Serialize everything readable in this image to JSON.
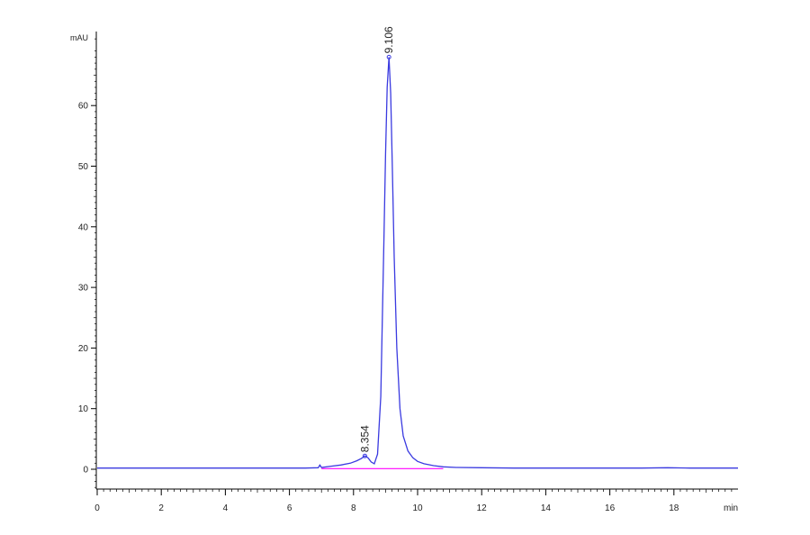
{
  "chart_data": {
    "type": "line",
    "title": "",
    "xlabel": "min",
    "ylabel": "mAU",
    "xlim": [
      0,
      20
    ],
    "ylim": [
      -4,
      72
    ],
    "x_ticks": [
      0,
      2,
      4,
      6,
      8,
      10,
      12,
      14,
      16,
      18
    ],
    "y_ticks": [
      0,
      10,
      20,
      30,
      40,
      50,
      60
    ],
    "grid": false,
    "legend": "none",
    "series": [
      {
        "color": "#3a3ae0",
        "x": [
          0,
          1,
          2,
          3,
          4,
          5,
          6,
          6.5,
          6.9,
          6.95,
          7.0,
          7.3,
          7.6,
          7.9,
          8.1,
          8.25,
          8.354,
          8.45,
          8.55,
          8.65,
          8.75,
          8.85,
          8.95,
          9.0,
          9.05,
          9.106,
          9.16,
          9.21,
          9.27,
          9.35,
          9.45,
          9.55,
          9.7,
          9.85,
          10.0,
          10.2,
          10.5,
          10.8,
          11.2,
          12,
          13,
          14,
          15,
          16,
          17,
          17.8,
          18.5,
          19,
          20
        ],
        "y": [
          0.2,
          0.2,
          0.2,
          0.2,
          0.2,
          0.2,
          0.2,
          0.2,
          0.25,
          0.7,
          0.3,
          0.5,
          0.7,
          1.0,
          1.4,
          1.8,
          2.2,
          1.9,
          1.2,
          0.9,
          2.5,
          12,
          38,
          52,
          63,
          68,
          62,
          50,
          35,
          20,
          10,
          5.5,
          3.0,
          1.9,
          1.3,
          0.9,
          0.6,
          0.4,
          0.3,
          0.25,
          0.2,
          0.2,
          0.2,
          0.2,
          0.2,
          0.25,
          0.2,
          0.2,
          0.2
        ]
      }
    ],
    "baseline": {
      "color": "#ff00ff",
      "x": [
        7.0,
        10.8
      ],
      "y": [
        0.1,
        0.1
      ]
    },
    "peaks": [
      {
        "label": "8.354",
        "x": 8.354,
        "y": 2.2
      },
      {
        "label": "9.106",
        "x": 9.106,
        "y": 68
      }
    ]
  }
}
